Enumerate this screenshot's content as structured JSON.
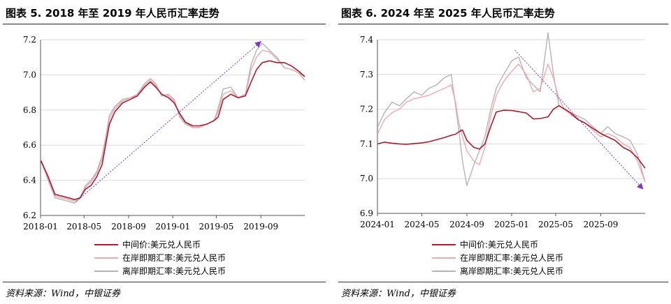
{
  "figures": [
    {
      "title": "图表 5. 2018 年至 2019 年人民币汇率走势",
      "source": "资料来源：Wind，中银证券"
    },
    {
      "title": "图表 6. 2024 年至 2025 年人民币汇率走势",
      "source": "资料来源：Wind，中银证券"
    }
  ],
  "colors": {
    "central": "#a81c2e",
    "onshore": "#f0a8ae",
    "offshore": "#b4b4b4",
    "trend": "#7a38c8"
  },
  "chart_data": [
    {
      "type": "line",
      "xlim": [
        "2018-01-01",
        "2019-12-31"
      ],
      "ylim": [
        6.2,
        7.2
      ],
      "x_ticks": [
        "2018-01",
        "2018-05",
        "2018-09",
        "2019-01",
        "2019-05",
        "2019-09"
      ],
      "y_ticks": [
        "6.2",
        "6.4",
        "6.6",
        "6.8",
        "7.0",
        "7.2"
      ],
      "grid": true,
      "legend_position": "bottom-left",
      "series": [
        {
          "name": "中间价:美元兑人民币",
          "x": [
            "2018-01-02",
            "2018-01-20",
            "2018-02-10",
            "2018-03-01",
            "2018-03-20",
            "2018-04-05",
            "2018-04-20",
            "2018-05-05",
            "2018-05-20",
            "2018-06-05",
            "2018-06-20",
            "2018-07-01",
            "2018-07-10",
            "2018-07-25",
            "2018-08-15",
            "2018-09-05",
            "2018-09-25",
            "2018-10-15",
            "2018-10-31",
            "2018-11-15",
            "2018-12-01",
            "2018-12-20",
            "2019-01-05",
            "2019-01-20",
            "2019-02-05",
            "2019-02-25",
            "2019-03-15",
            "2019-04-05",
            "2019-04-25",
            "2019-05-06",
            "2019-05-20",
            "2019-06-10",
            "2019-06-30",
            "2019-07-20",
            "2019-08-05",
            "2019-08-20",
            "2019-09-05",
            "2019-09-25",
            "2019-10-15",
            "2019-11-05",
            "2019-11-25",
            "2019-12-15",
            "2019-12-31"
          ],
          "values": [
            6.51,
            6.43,
            6.32,
            6.31,
            6.3,
            6.29,
            6.3,
            6.35,
            6.37,
            6.42,
            6.49,
            6.62,
            6.72,
            6.79,
            6.84,
            6.86,
            6.88,
            6.93,
            6.96,
            6.93,
            6.89,
            6.87,
            6.84,
            6.78,
            6.73,
            6.71,
            6.71,
            6.72,
            6.74,
            6.76,
            6.86,
            6.89,
            6.87,
            6.88,
            6.96,
            7.03,
            7.07,
            7.08,
            7.07,
            7.07,
            7.05,
            7.02,
            6.99
          ]
        },
        {
          "name": "在岸即期汇率:美元兑人民币",
          "x": [
            "2018-01-02",
            "2018-01-20",
            "2018-02-10",
            "2018-03-01",
            "2018-03-20",
            "2018-04-05",
            "2018-04-20",
            "2018-05-05",
            "2018-05-20",
            "2018-06-05",
            "2018-06-20",
            "2018-07-01",
            "2018-07-10",
            "2018-07-25",
            "2018-08-15",
            "2018-09-05",
            "2018-09-25",
            "2018-10-15",
            "2018-10-31",
            "2018-11-15",
            "2018-12-01",
            "2018-12-20",
            "2019-01-05",
            "2019-01-20",
            "2019-02-05",
            "2019-02-25",
            "2019-03-15",
            "2019-04-05",
            "2019-04-25",
            "2019-05-06",
            "2019-05-20",
            "2019-06-10",
            "2019-06-30",
            "2019-07-20",
            "2019-08-05",
            "2019-08-20",
            "2019-09-05",
            "2019-09-25",
            "2019-10-15",
            "2019-11-05",
            "2019-11-25",
            "2019-12-15",
            "2019-12-31"
          ],
          "values": [
            6.52,
            6.42,
            6.31,
            6.3,
            6.29,
            6.28,
            6.3,
            6.36,
            6.39,
            6.44,
            6.52,
            6.64,
            6.75,
            6.81,
            6.85,
            6.87,
            6.88,
            6.94,
            6.97,
            6.94,
            6.89,
            6.88,
            6.85,
            6.77,
            6.73,
            6.7,
            6.7,
            6.72,
            6.74,
            6.79,
            6.89,
            6.91,
            6.87,
            6.88,
            7.03,
            7.1,
            7.14,
            7.13,
            7.09,
            7.04,
            7.03,
            7.01,
            6.99
          ]
        },
        {
          "name": "离岸即期汇率:美元兑人民币",
          "x": [
            "2018-01-02",
            "2018-01-20",
            "2018-02-10",
            "2018-03-01",
            "2018-03-20",
            "2018-04-05",
            "2018-04-20",
            "2018-05-05",
            "2018-05-20",
            "2018-06-05",
            "2018-06-20",
            "2018-07-01",
            "2018-07-10",
            "2018-07-25",
            "2018-08-15",
            "2018-09-05",
            "2018-09-25",
            "2018-10-15",
            "2018-10-31",
            "2018-11-15",
            "2018-12-01",
            "2018-12-20",
            "2019-01-05",
            "2019-01-20",
            "2019-02-05",
            "2019-02-25",
            "2019-03-15",
            "2019-04-05",
            "2019-04-25",
            "2019-05-06",
            "2019-05-20",
            "2019-06-10",
            "2019-06-30",
            "2019-07-20",
            "2019-08-05",
            "2019-08-20",
            "2019-09-05",
            "2019-09-25",
            "2019-10-15",
            "2019-11-05",
            "2019-11-25",
            "2019-12-15",
            "2019-12-31"
          ],
          "values": [
            6.52,
            6.41,
            6.3,
            6.29,
            6.28,
            6.27,
            6.3,
            6.37,
            6.4,
            6.45,
            6.54,
            6.66,
            6.77,
            6.82,
            6.86,
            6.87,
            6.89,
            6.95,
            6.98,
            6.95,
            6.88,
            6.89,
            6.86,
            6.76,
            6.72,
            6.7,
            6.7,
            6.72,
            6.74,
            6.81,
            6.92,
            6.93,
            6.87,
            6.89,
            7.06,
            7.14,
            7.18,
            7.14,
            7.1,
            7.04,
            7.03,
            7.01,
            6.97
          ]
        }
      ],
      "trend_arrow": {
        "from": [
          "2018-04-10",
          6.28
        ],
        "to": [
          "2019-09-01",
          7.19
        ]
      }
    },
    {
      "type": "line",
      "xlim": [
        "2024-01-01",
        "2025-12-31"
      ],
      "ylim": [
        6.9,
        7.4
      ],
      "x_ticks": [
        "2024-01",
        "2024-05",
        "2024-09",
        "2025-01",
        "2025-05",
        "2025-09"
      ],
      "y_ticks": [
        "6.9",
        "7.0",
        "7.1",
        "7.2",
        "7.3",
        "7.4"
      ],
      "grid": true,
      "legend_position": "bottom-left",
      "series": [
        {
          "name": "中间价:美元兑人民币",
          "x": [
            "2024-01-02",
            "2024-01-20",
            "2024-02-10",
            "2024-03-01",
            "2024-03-20",
            "2024-04-10",
            "2024-05-01",
            "2024-05-20",
            "2024-06-10",
            "2024-07-01",
            "2024-07-20",
            "2024-08-01",
            "2024-08-10",
            "2024-08-20",
            "2024-09-01",
            "2024-09-20",
            "2024-10-05",
            "2024-10-20",
            "2024-11-05",
            "2024-11-20",
            "2024-12-10",
            "2025-01-02",
            "2025-01-20",
            "2025-02-10",
            "2025-03-01",
            "2025-03-20",
            "2025-04-10",
            "2025-04-25",
            "2025-05-10",
            "2025-05-25",
            "2025-06-10",
            "2025-07-01",
            "2025-07-20",
            "2025-08-10",
            "2025-09-01",
            "2025-09-20",
            "2025-10-10",
            "2025-11-01",
            "2025-11-20",
            "2025-12-10",
            "2025-12-31"
          ],
          "values": [
            7.1,
            7.105,
            7.102,
            7.1,
            7.099,
            7.101,
            7.103,
            7.106,
            7.112,
            7.118,
            7.125,
            7.128,
            7.135,
            7.14,
            7.11,
            7.09,
            7.085,
            7.1,
            7.15,
            7.192,
            7.197,
            7.196,
            7.193,
            7.189,
            7.172,
            7.173,
            7.178,
            7.2,
            7.21,
            7.2,
            7.19,
            7.17,
            7.16,
            7.145,
            7.13,
            7.12,
            7.11,
            7.09,
            7.08,
            7.06,
            7.03
          ]
        },
        {
          "name": "在岸即期汇率:美元兑人民币",
          "x": [
            "2024-01-02",
            "2024-01-20",
            "2024-02-10",
            "2024-03-01",
            "2024-03-20",
            "2024-04-10",
            "2024-05-01",
            "2024-05-20",
            "2024-06-10",
            "2024-07-01",
            "2024-07-20",
            "2024-08-01",
            "2024-08-10",
            "2024-08-20",
            "2024-09-01",
            "2024-09-20",
            "2024-10-05",
            "2024-10-20",
            "2024-11-05",
            "2024-11-20",
            "2024-12-10",
            "2025-01-02",
            "2025-01-20",
            "2025-02-10",
            "2025-03-01",
            "2025-03-20",
            "2025-04-10",
            "2025-04-25",
            "2025-05-10",
            "2025-05-25",
            "2025-06-10",
            "2025-07-01",
            "2025-07-20",
            "2025-08-10",
            "2025-09-01",
            "2025-09-20",
            "2025-10-10",
            "2025-11-01",
            "2025-11-20",
            "2025-12-10",
            "2025-12-31"
          ],
          "values": [
            7.13,
            7.17,
            7.19,
            7.2,
            7.22,
            7.23,
            7.235,
            7.24,
            7.25,
            7.26,
            7.27,
            7.22,
            7.16,
            7.12,
            7.08,
            7.05,
            7.04,
            7.09,
            7.18,
            7.24,
            7.28,
            7.31,
            7.33,
            7.3,
            7.25,
            7.26,
            7.33,
            7.29,
            7.23,
            7.2,
            7.185,
            7.17,
            7.16,
            7.14,
            7.12,
            7.13,
            7.12,
            7.1,
            7.09,
            7.05,
            6.99
          ]
        },
        {
          "name": "离岸即期汇率:美元兑人民币",
          "x": [
            "2024-01-02",
            "2024-01-20",
            "2024-02-10",
            "2024-03-01",
            "2024-03-20",
            "2024-04-10",
            "2024-05-01",
            "2024-05-20",
            "2024-06-10",
            "2024-07-01",
            "2024-07-20",
            "2024-08-01",
            "2024-08-10",
            "2024-08-20",
            "2024-09-01",
            "2024-09-20",
            "2024-10-05",
            "2024-10-20",
            "2024-11-05",
            "2024-11-20",
            "2024-12-10",
            "2025-01-02",
            "2025-01-20",
            "2025-02-10",
            "2025-03-01",
            "2025-03-20",
            "2025-04-10",
            "2025-04-25",
            "2025-05-10",
            "2025-05-25",
            "2025-06-10",
            "2025-07-01",
            "2025-07-20",
            "2025-08-10",
            "2025-09-01",
            "2025-09-20",
            "2025-10-10",
            "2025-11-01",
            "2025-11-20",
            "2025-12-10",
            "2025-12-31"
          ],
          "values": [
            7.15,
            7.19,
            7.22,
            7.21,
            7.23,
            7.25,
            7.24,
            7.26,
            7.27,
            7.29,
            7.3,
            7.21,
            7.14,
            7.05,
            6.98,
            7.04,
            7.08,
            7.12,
            7.2,
            7.26,
            7.3,
            7.34,
            7.35,
            7.29,
            7.27,
            7.25,
            7.42,
            7.3,
            7.21,
            7.2,
            7.19,
            7.18,
            7.17,
            7.15,
            7.13,
            7.15,
            7.13,
            7.12,
            7.11,
            7.07,
            6.99
          ]
        }
      ],
      "trend_arrow": {
        "from": [
          "2025-01-10",
          7.37
        ],
        "to": [
          "2025-12-25",
          6.97
        ]
      }
    }
  ]
}
